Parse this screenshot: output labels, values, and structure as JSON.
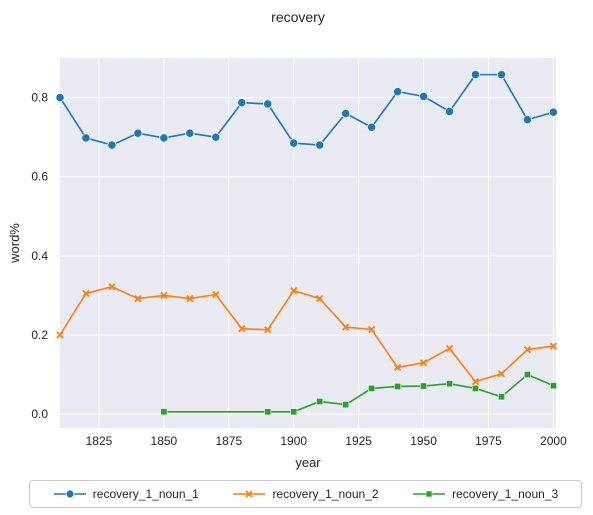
{
  "chart_data": {
    "type": "line",
    "title": "recovery",
    "xlabel": "year",
    "ylabel": "word%",
    "xlim": [
      1810,
      2001
    ],
    "ylim": [
      -0.035,
      0.9
    ],
    "xticks": [
      1825,
      1850,
      1875,
      1900,
      1925,
      1950,
      1975,
      2000
    ],
    "yticks": [
      0.0,
      0.2,
      0.4,
      0.6,
      0.8
    ],
    "ytick_labels": [
      "0.0",
      "0.2",
      "0.4",
      "0.6",
      "0.8"
    ],
    "grid": true,
    "legend_position": "bottom",
    "series": [
      {
        "name": "recovery_1_noun_1",
        "color": "#1f77b4",
        "marker": "circle",
        "x": [
          1810,
          1820,
          1830,
          1840,
          1850,
          1860,
          1870,
          1880,
          1890,
          1900,
          1910,
          1920,
          1930,
          1940,
          1950,
          1960,
          1970,
          1980,
          1990,
          2000
        ],
        "y": [
          0.8,
          0.698,
          0.68,
          0.71,
          0.698,
          0.71,
          0.7,
          0.787,
          0.784,
          0.685,
          0.68,
          0.76,
          0.725,
          0.815,
          0.803,
          0.765,
          0.858,
          0.858,
          0.744,
          0.763
        ]
      },
      {
        "name": "recovery_1_noun_2",
        "color": "#ff7f0e",
        "marker": "x",
        "x": [
          1810,
          1820,
          1830,
          1840,
          1850,
          1860,
          1870,
          1880,
          1890,
          1900,
          1910,
          1920,
          1930,
          1940,
          1950,
          1960,
          1970,
          1980,
          1990,
          2000
        ],
        "y": [
          0.2,
          0.305,
          0.322,
          0.292,
          0.3,
          0.292,
          0.302,
          0.216,
          0.213,
          0.312,
          0.292,
          0.22,
          0.214,
          0.118,
          0.13,
          0.166,
          0.082,
          0.102,
          0.163,
          0.172
        ]
      },
      {
        "name": "recovery_1_noun_3",
        "color": "#2ca02c",
        "marker": "square",
        "x": [
          1850,
          1890,
          1900,
          1910,
          1920,
          1930,
          1940,
          1950,
          1960,
          1970,
          1980,
          1990,
          2000
        ],
        "y": [
          0.006,
          0.006,
          0.006,
          0.032,
          0.024,
          0.065,
          0.07,
          0.071,
          0.077,
          0.065,
          0.044,
          0.1,
          0.072
        ]
      }
    ]
  }
}
